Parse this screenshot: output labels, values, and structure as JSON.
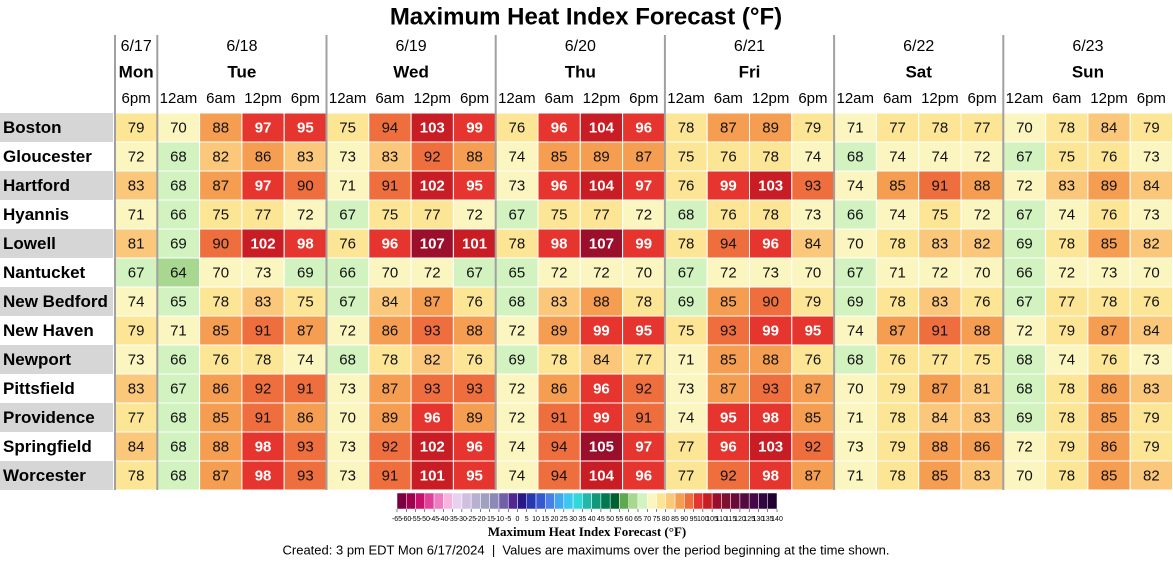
{
  "title": "Maximum Heat Index Forecast (°F)",
  "days": [
    {
      "date": "6/17",
      "day": "Mon",
      "times": [
        "6pm"
      ]
    },
    {
      "date": "6/18",
      "day": "Tue",
      "times": [
        "12am",
        "6am",
        "12pm",
        "6pm"
      ]
    },
    {
      "date": "6/19",
      "day": "Wed",
      "times": [
        "12am",
        "6am",
        "12pm",
        "6pm"
      ]
    },
    {
      "date": "6/20",
      "day": "Thu",
      "times": [
        "12am",
        "6am",
        "12pm",
        "6pm"
      ]
    },
    {
      "date": "6/21",
      "day": "Fri",
      "times": [
        "12am",
        "6am",
        "12pm",
        "6pm"
      ]
    },
    {
      "date": "6/22",
      "day": "Sat",
      "times": [
        "12am",
        "6am",
        "12pm",
        "6pm"
      ]
    },
    {
      "date": "6/23",
      "day": "Sun",
      "times": [
        "12am",
        "6am",
        "12pm",
        "6pm"
      ]
    }
  ],
  "rows": [
    {
      "city": "Boston",
      "values": [
        79,
        70,
        88,
        97,
        95,
        75,
        94,
        103,
        99,
        76,
        96,
        104,
        96,
        78,
        87,
        89,
        79,
        71,
        77,
        78,
        77,
        70,
        78,
        84,
        79
      ]
    },
    {
      "city": "Gloucester",
      "values": [
        72,
        68,
        82,
        86,
        83,
        73,
        83,
        92,
        88,
        74,
        85,
        89,
        87,
        75,
        76,
        78,
        74,
        68,
        74,
        74,
        72,
        67,
        75,
        76,
        73
      ]
    },
    {
      "city": "Hartford",
      "values": [
        83,
        68,
        87,
        97,
        90,
        71,
        91,
        102,
        95,
        73,
        96,
        104,
        97,
        76,
        99,
        103,
        93,
        74,
        85,
        91,
        88,
        72,
        83,
        89,
        84
      ]
    },
    {
      "city": "Hyannis",
      "values": [
        71,
        66,
        75,
        77,
        72,
        67,
        75,
        77,
        72,
        67,
        75,
        77,
        72,
        68,
        76,
        78,
        73,
        66,
        74,
        75,
        72,
        67,
        74,
        76,
        73
      ]
    },
    {
      "city": "Lowell",
      "values": [
        81,
        69,
        90,
        102,
        98,
        76,
        96,
        107,
        101,
        78,
        98,
        107,
        99,
        78,
        94,
        96,
        84,
        70,
        78,
        83,
        82,
        69,
        78,
        85,
        82
      ]
    },
    {
      "city": "Nantucket",
      "values": [
        67,
        64,
        70,
        73,
        69,
        66,
        70,
        72,
        67,
        65,
        72,
        72,
        70,
        67,
        72,
        73,
        70,
        67,
        71,
        72,
        70,
        66,
        72,
        73,
        70
      ]
    },
    {
      "city": "New Bedford",
      "values": [
        74,
        65,
        78,
        83,
        75,
        67,
        84,
        87,
        76,
        68,
        83,
        88,
        78,
        69,
        85,
        90,
        79,
        69,
        78,
        83,
        76,
        67,
        77,
        78,
        76
      ]
    },
    {
      "city": "New Haven",
      "values": [
        79,
        71,
        85,
        91,
        87,
        72,
        86,
        93,
        88,
        72,
        89,
        99,
        95,
        75,
        93,
        99,
        95,
        74,
        87,
        91,
        88,
        72,
        79,
        87,
        84
      ]
    },
    {
      "city": "Newport",
      "values": [
        73,
        66,
        76,
        78,
        74,
        68,
        78,
        82,
        76,
        69,
        78,
        84,
        77,
        71,
        85,
        88,
        76,
        68,
        76,
        77,
        75,
        68,
        74,
        76,
        73
      ]
    },
    {
      "city": "Pittsfield",
      "values": [
        83,
        67,
        86,
        92,
        91,
        73,
        87,
        93,
        93,
        72,
        86,
        96,
        92,
        73,
        87,
        93,
        87,
        70,
        79,
        87,
        81,
        68,
        78,
        86,
        83
      ]
    },
    {
      "city": "Providence",
      "values": [
        77,
        68,
        85,
        91,
        86,
        70,
        89,
        96,
        89,
        72,
        91,
        99,
        91,
        74,
        95,
        98,
        85,
        71,
        78,
        84,
        83,
        69,
        78,
        85,
        79
      ]
    },
    {
      "city": "Springfield",
      "values": [
        84,
        68,
        88,
        98,
        93,
        73,
        92,
        102,
        96,
        74,
        94,
        105,
        97,
        77,
        96,
        103,
        92,
        73,
        79,
        88,
        86,
        72,
        79,
        86,
        79
      ]
    },
    {
      "city": "Worcester",
      "values": [
        78,
        68,
        87,
        98,
        93,
        73,
        91,
        101,
        95,
        74,
        94,
        104,
        96,
        77,
        92,
        98,
        87,
        71,
        78,
        85,
        83,
        70,
        78,
        85,
        82
      ]
    }
  ],
  "colorbar": {
    "label": "Maximum Heat Index Forecast (°F)",
    "ticks": [
      -65,
      -60,
      -55,
      -50,
      -45,
      -40,
      -35,
      -30,
      -25,
      -20,
      -15,
      -10,
      -5,
      0,
      5,
      10,
      15,
      20,
      25,
      30,
      35,
      40,
      45,
      50,
      55,
      60,
      65,
      70,
      75,
      80,
      85,
      90,
      95,
      100,
      105,
      110,
      115,
      120,
      125,
      130,
      135,
      140
    ],
    "colors": [
      "#7a0040",
      "#a0004f",
      "#c8106a",
      "#e0409a",
      "#f07cc0",
      "#f8b4dc",
      "#e6d2f0",
      "#d0c0e0",
      "#b8b0d0",
      "#a0a0c0",
      "#8c88b8",
      "#7060a8",
      "#502890",
      "#281888",
      "#2838b0",
      "#3858d0",
      "#4880e8",
      "#40a8f0",
      "#38c8f0",
      "#30d8d8",
      "#20b8a8",
      "#109878",
      "#007850",
      "#006030",
      "#60a850",
      "#a8d890",
      "#d2f2c0",
      "#fbf5c0",
      "#fde596",
      "#fbc77a",
      "#f59e52",
      "#ef6e3e",
      "#e5352e",
      "#c81d24",
      "#9c0f2c",
      "#801030",
      "#6a0a38",
      "#560840",
      "#440848",
      "#300540",
      "#200030"
    ]
  },
  "footer": "Created: 3 pm EDT Mon 6/17/2024  |  Values are maximums over the period beginning at the time shown."
}
